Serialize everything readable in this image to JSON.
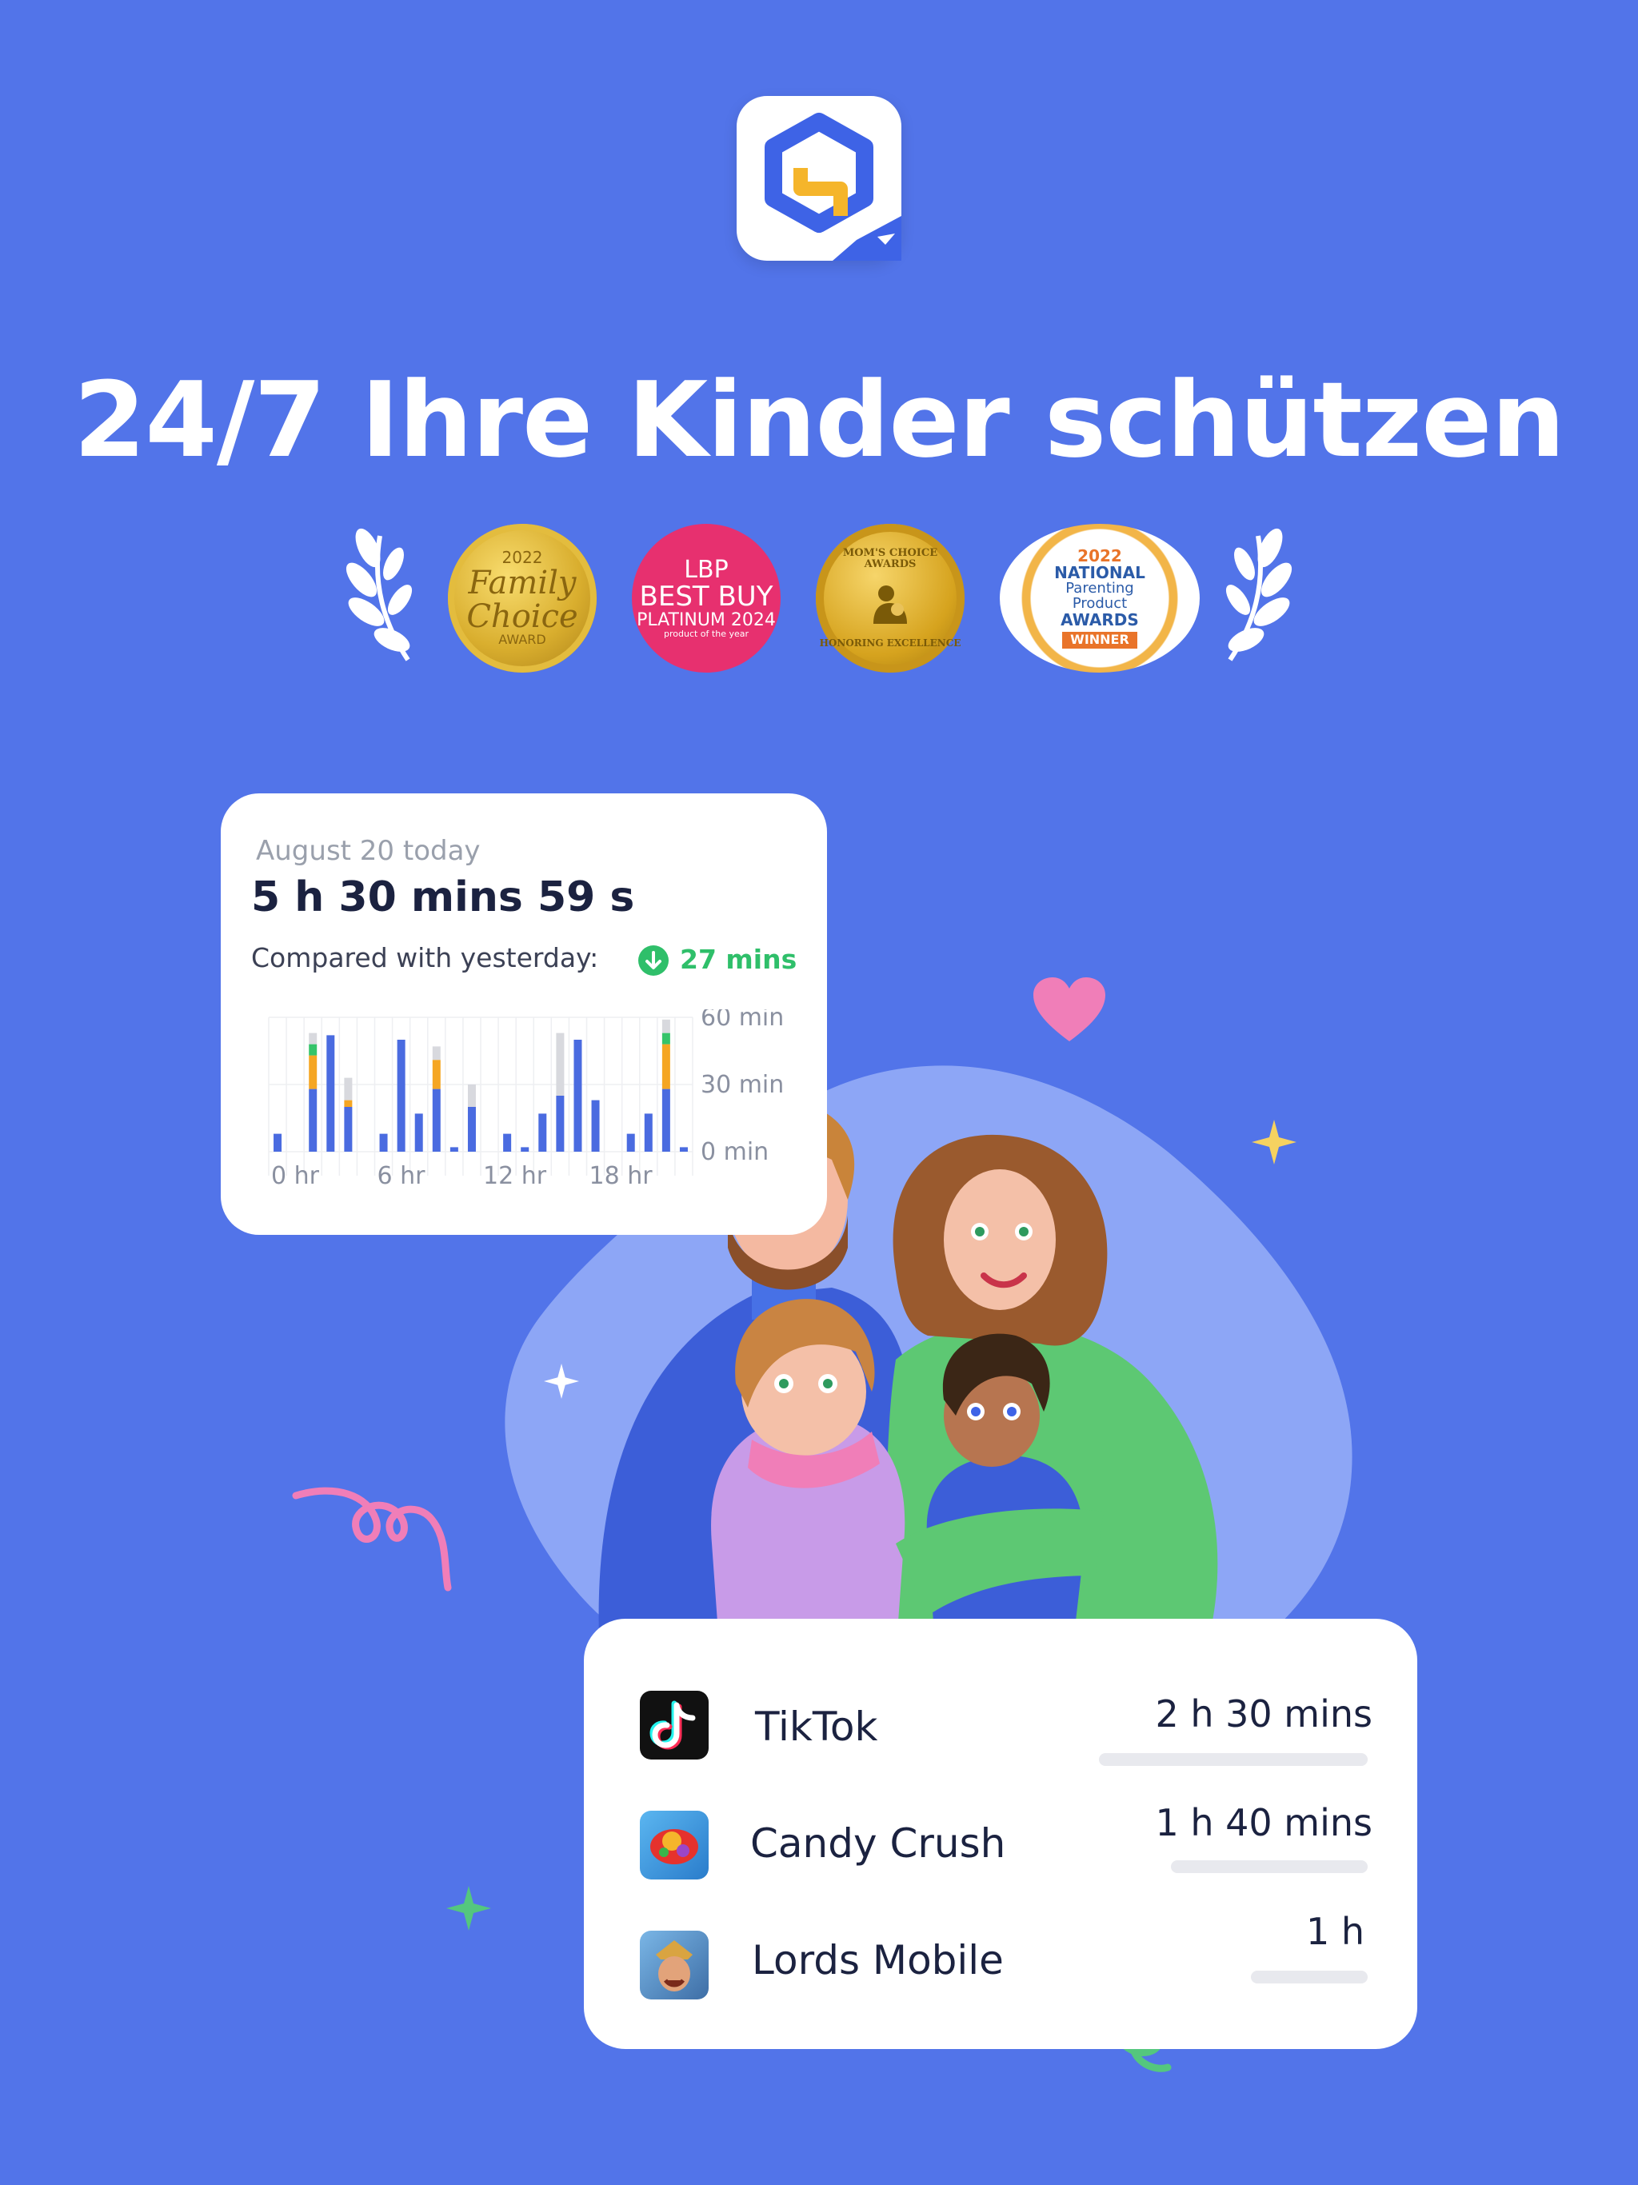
{
  "headline": "24/7 Ihre Kinder schützen",
  "awards": [
    {
      "id": "family-choice",
      "line1": "2022",
      "line2": "Family",
      "line3": "Choice",
      "line4": "AWARD"
    },
    {
      "id": "lbp",
      "line1": "LBP",
      "line2": "BEST BUY",
      "line3": "PLATINUM 2024",
      "line4": "product of the year"
    },
    {
      "id": "moms-choice",
      "line1": "MOM'S CHOICE AWARDS",
      "line2": "HONORING EXCELLENCE"
    },
    {
      "id": "npa",
      "line1": "2022",
      "line2": "NATIONAL",
      "line3": "Parenting",
      "line4": "Product",
      "line5": "AWARDS",
      "line6": "WINNER"
    }
  ],
  "stats_card": {
    "date": "August 20 today",
    "total": "5 h 30 mins 59 s",
    "compare_label": "Compared with yesterday:",
    "compare_value": "27 mins"
  },
  "chart_data": {
    "type": "bar",
    "stacked": true,
    "x_tick_labels": [
      "0 hr",
      "6 hr",
      "12 hr",
      "18 hr"
    ],
    "y_tick_labels": [
      "60 min",
      "30 min",
      "0 min"
    ],
    "ylim": [
      0,
      60
    ],
    "grid": true,
    "categories": [
      "0",
      "1",
      "2",
      "3",
      "4",
      "5",
      "6",
      "7",
      "8",
      "9",
      "10",
      "11",
      "12",
      "13",
      "14",
      "15",
      "16",
      "17",
      "18",
      "19",
      "20",
      "21",
      "22",
      "23"
    ],
    "series": [
      {
        "color": "#4A6BE0",
        "values": [
          8,
          0,
          28,
          52,
          20,
          0,
          8,
          50,
          17,
          28,
          2,
          20,
          0,
          8,
          2,
          17,
          25,
          50,
          23,
          0,
          8,
          17,
          28,
          2
        ]
      },
      {
        "color": "#F5A623",
        "values": [
          0,
          0,
          15,
          0,
          3,
          0,
          0,
          0,
          0,
          13,
          0,
          0,
          0,
          0,
          0,
          0,
          0,
          0,
          0,
          0,
          0,
          0,
          20,
          0
        ]
      },
      {
        "color": "#35C46A",
        "values": [
          0,
          0,
          5,
          0,
          0,
          0,
          0,
          0,
          0,
          0,
          0,
          0,
          0,
          0,
          0,
          0,
          0,
          0,
          0,
          0,
          0,
          0,
          5,
          0
        ]
      },
      {
        "color": "#D8D9DE",
        "values": [
          0,
          0,
          5,
          0,
          10,
          0,
          0,
          0,
          0,
          6,
          0,
          10,
          0,
          0,
          0,
          0,
          28,
          0,
          0,
          0,
          0,
          0,
          6,
          0
        ]
      }
    ]
  },
  "usage": [
    {
      "name": "TikTok",
      "time": "2 h 30 mins",
      "icon": "tiktok-icon",
      "fraction": 1.0
    },
    {
      "name": "Candy Crush",
      "time": "1 h 40 mins",
      "icon": "candy-crush-icon",
      "fraction": 0.67
    },
    {
      "name": "Lords Mobile",
      "time": "1 h",
      "icon": "lords-mobile-icon",
      "fraction": 0.43
    }
  ],
  "colors": {
    "background": "#5274E9",
    "accent_blue": "#4A6BE0",
    "accent_green": "#2FBF6A",
    "accent_orange": "#F5A623"
  }
}
